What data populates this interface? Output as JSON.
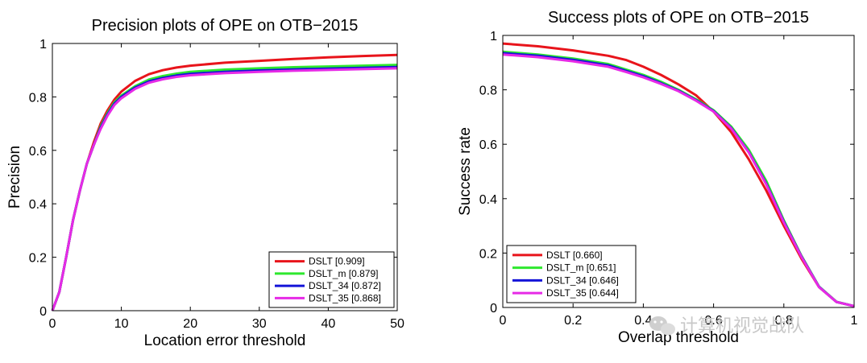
{
  "chart_data": [
    {
      "type": "line",
      "title": "Precision plots of OPE on OTB−2015",
      "xlabel": "Location error threshold",
      "ylabel": "Precision",
      "xlim": [
        0,
        50
      ],
      "ylim": [
        0,
        1
      ],
      "xticks": [
        "0",
        "10",
        "20",
        "30",
        "40",
        "50"
      ],
      "yticks": [
        "0",
        "0.2",
        "0.4",
        "0.6",
        "0.8",
        "1"
      ],
      "legend_position": "bottom-right",
      "x": [
        0,
        1,
        2,
        3,
        4,
        5,
        6,
        7,
        8,
        9,
        10,
        12,
        14,
        16,
        18,
        20,
        25,
        30,
        35,
        40,
        45,
        50
      ],
      "series": [
        {
          "name": "DSLT [0.909]",
          "color": "#e8141b",
          "values": [
            0.0,
            0.07,
            0.2,
            0.34,
            0.45,
            0.55,
            0.63,
            0.7,
            0.75,
            0.79,
            0.82,
            0.86,
            0.885,
            0.9,
            0.91,
            0.917,
            0.928,
            0.935,
            0.942,
            0.948,
            0.953,
            0.957
          ]
        },
        {
          "name": "DSLT_m [0.879]",
          "color": "#2ee82e",
          "values": [
            0.0,
            0.07,
            0.2,
            0.34,
            0.45,
            0.55,
            0.62,
            0.69,
            0.74,
            0.78,
            0.805,
            0.84,
            0.865,
            0.878,
            0.887,
            0.894,
            0.902,
            0.907,
            0.911,
            0.914,
            0.917,
            0.92
          ]
        },
        {
          "name": "DSLT_34 [0.872]",
          "color": "#1414d8",
          "values": [
            0.0,
            0.07,
            0.2,
            0.34,
            0.45,
            0.55,
            0.62,
            0.685,
            0.735,
            0.775,
            0.8,
            0.835,
            0.858,
            0.871,
            0.88,
            0.886,
            0.894,
            0.899,
            0.903,
            0.906,
            0.909,
            0.912
          ]
        },
        {
          "name": "DSLT_35 [0.868]",
          "color": "#e62ae6",
          "values": [
            0.0,
            0.07,
            0.2,
            0.34,
            0.45,
            0.55,
            0.62,
            0.68,
            0.73,
            0.77,
            0.795,
            0.83,
            0.853,
            0.866,
            0.875,
            0.881,
            0.889,
            0.894,
            0.898,
            0.901,
            0.904,
            0.907
          ]
        }
      ]
    },
    {
      "type": "line",
      "title": "Success plots of OPE on OTB−2015",
      "xlabel": "Overlap threshold",
      "ylabel": "Success rate",
      "xlim": [
        0,
        1
      ],
      "ylim": [
        0,
        1
      ],
      "xticks": [
        "0",
        "0.2",
        "0.4",
        "0.6",
        "0.8",
        "1"
      ],
      "yticks": [
        "0",
        "0.2",
        "0.4",
        "0.6",
        "0.8",
        "1"
      ],
      "legend_position": "bottom-left",
      "x": [
        0,
        0.1,
        0.2,
        0.3,
        0.35,
        0.4,
        0.45,
        0.5,
        0.55,
        0.6,
        0.65,
        0.7,
        0.75,
        0.8,
        0.85,
        0.9,
        0.95,
        1.0
      ],
      "series": [
        {
          "name": "DSLT [0.660]",
          "color": "#e8141b",
          "values": [
            0.97,
            0.96,
            0.945,
            0.925,
            0.91,
            0.885,
            0.855,
            0.82,
            0.78,
            0.72,
            0.645,
            0.545,
            0.43,
            0.3,
            0.18,
            0.075,
            0.02,
            0.005
          ]
        },
        {
          "name": "DSLT_m [0.651]",
          "color": "#2ee82e",
          "values": [
            0.94,
            0.93,
            0.915,
            0.895,
            0.875,
            0.855,
            0.83,
            0.8,
            0.765,
            0.725,
            0.665,
            0.58,
            0.465,
            0.32,
            0.19,
            0.077,
            0.021,
            0.005
          ]
        },
        {
          "name": "DSLT_34 [0.646]",
          "color": "#1414d8",
          "values": [
            0.935,
            0.925,
            0.91,
            0.89,
            0.87,
            0.85,
            0.825,
            0.797,
            0.762,
            0.722,
            0.66,
            0.572,
            0.455,
            0.315,
            0.188,
            0.076,
            0.02,
            0.005
          ]
        },
        {
          "name": "DSLT_35 [0.644]",
          "color": "#e62ae6",
          "values": [
            0.93,
            0.92,
            0.905,
            0.885,
            0.866,
            0.846,
            0.822,
            0.795,
            0.76,
            0.72,
            0.658,
            0.57,
            0.452,
            0.312,
            0.186,
            0.075,
            0.02,
            0.005
          ]
        }
      ]
    }
  ],
  "watermark": {
    "text": "计算机视觉战队",
    "icon": "wechat-icon"
  }
}
